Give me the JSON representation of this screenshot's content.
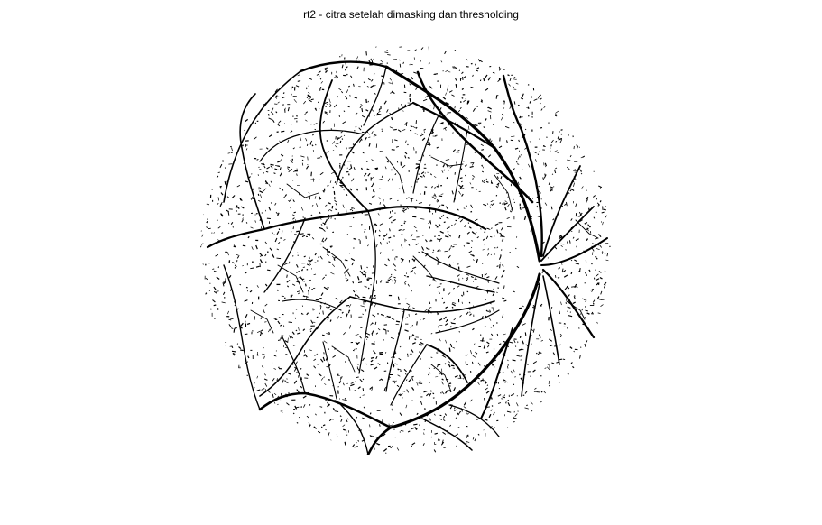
{
  "figure": {
    "title": "rt2 - citra setelah dimasking dan thresholding"
  },
  "image": {
    "subject": "retina-fundus-vessel-binary",
    "background_color": "#ffffff",
    "vessel_color": "#000000"
  }
}
